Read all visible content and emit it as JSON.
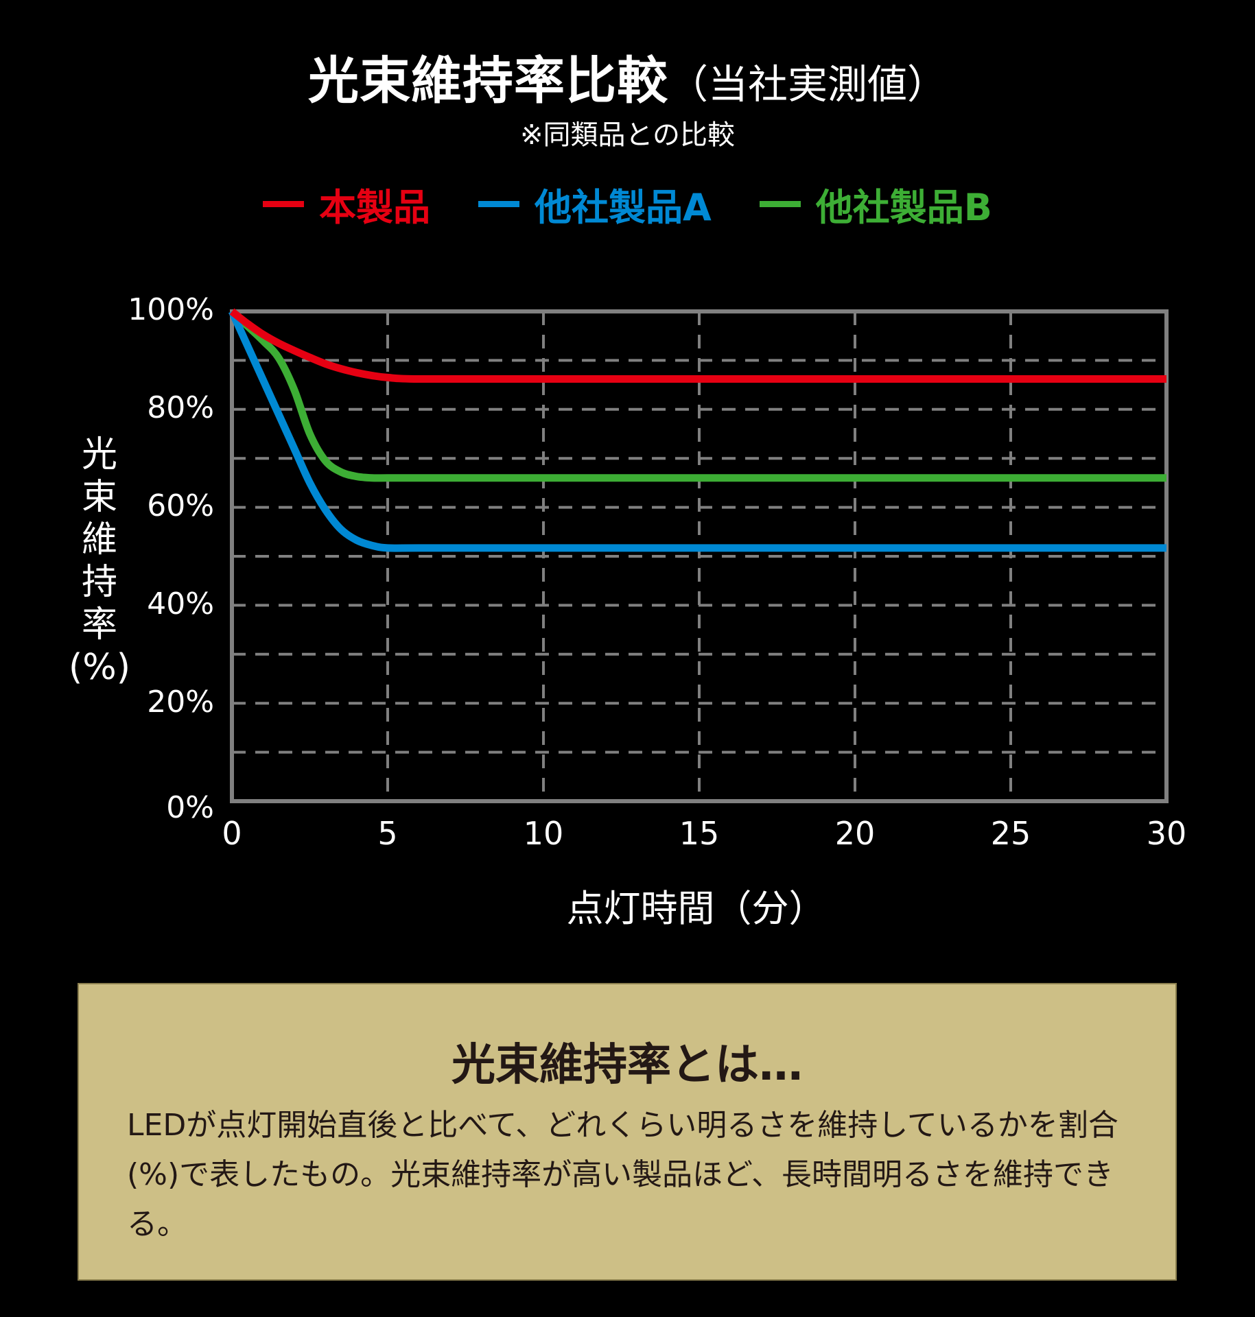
{
  "header": {
    "title_main": "光束維持率比較",
    "title_sub": "（当社実測値）",
    "subtitle": "※同類品との比較"
  },
  "legend": [
    {
      "label": "本製品",
      "color": "#E60012"
    },
    {
      "label": "他社製品A",
      "color": "#0089D4"
    },
    {
      "label": "他社製品B",
      "color": "#3DAE35"
    }
  ],
  "axes": {
    "y_label_chars": [
      "光",
      "束",
      "維",
      "持",
      "率",
      "(%)"
    ],
    "y_ticks": [
      "100%",
      "80%",
      "60%",
      "40%",
      "20%",
      "0%"
    ],
    "x_ticks": [
      "0",
      "5",
      "10",
      "15",
      "20",
      "25",
      "30"
    ],
    "x_title": "点灯時間（分）"
  },
  "info_box": {
    "title": "光束維持率とは…",
    "body": "LEDが点灯開始直後と比べて、どれくらい明るさを維持しているかを割合(%)で表したもの。光束維持率が高い製品ほど、長時間明るさを維持できる。",
    "background": "#CDBF86"
  },
  "chart_data": {
    "type": "line",
    "title": "光束維持率比較（当社実測値）",
    "subtitle": "※同類品との比較",
    "xlabel": "点灯時間（分）",
    "ylabel": "光束維持率(%)",
    "xlim": [
      0,
      30
    ],
    "ylim": [
      0,
      100
    ],
    "x_ticks": [
      0,
      5,
      10,
      15,
      20,
      25,
      30
    ],
    "y_ticks": [
      0,
      20,
      40,
      60,
      80,
      100
    ],
    "grid": {
      "x_every": 5,
      "y_every": 10,
      "style": "dashed"
    },
    "legend_position": "top",
    "x": [
      0,
      0.5,
      1,
      1.5,
      2,
      2.5,
      3,
      3.5,
      4,
      4.5,
      5,
      6,
      10,
      15,
      20,
      25,
      30
    ],
    "series": [
      {
        "name": "本製品",
        "color": "#E60012",
        "values": [
          100,
          97.5,
          95.3,
          93.5,
          92,
          90.6,
          89.3,
          88.3,
          87.5,
          86.9,
          86.5,
          86.2,
          86.2,
          86.2,
          86.2,
          86.2,
          86.2
        ]
      },
      {
        "name": "他社製品A",
        "color": "#0089D4",
        "values": [
          100,
          93,
          86,
          79,
          72,
          65,
          59.5,
          55.5,
          53.3,
          52.2,
          51.7,
          51.7,
          51.7,
          51.7,
          51.7,
          51.7,
          51.7
        ]
      },
      {
        "name": "他社製品B",
        "color": "#3DAE35",
        "values": [
          100,
          97,
          94,
          90.5,
          84,
          75,
          69.5,
          67.2,
          66.3,
          66,
          66,
          66,
          66,
          66,
          66,
          66,
          66
        ]
      }
    ]
  }
}
